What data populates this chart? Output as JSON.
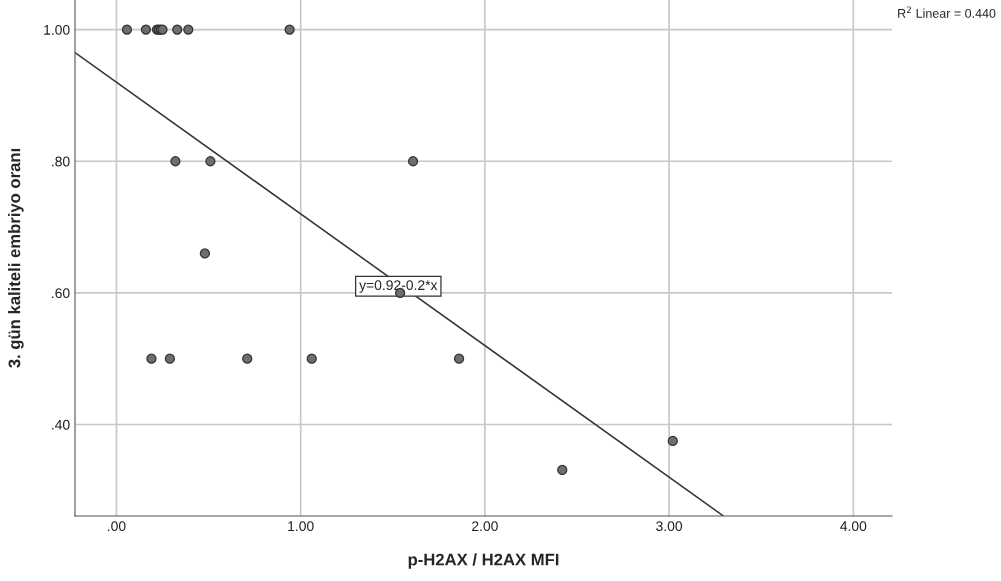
{
  "chart_data": {
    "type": "scatter",
    "xlabel": "p-H2AX / H2AX MFI",
    "ylabel": "3. gün kaliteli embriyo oranı",
    "xlim": [
      -0.225,
      4.21
    ],
    "ylim": [
      0.261,
      1.045
    ],
    "xticks": [
      {
        "value": 0,
        "label": ".00"
      },
      {
        "value": 1,
        "label": "1.00"
      },
      {
        "value": 2,
        "label": "2.00"
      },
      {
        "value": 3,
        "label": "3.00"
      },
      {
        "value": 4,
        "label": "4.00"
      }
    ],
    "yticks": [
      {
        "value": 0.4,
        "label": ".40"
      },
      {
        "value": 0.6,
        "label": ".60"
      },
      {
        "value": 0.8,
        "label": ".80"
      },
      {
        "value": 1.0,
        "label": "1.00"
      }
    ],
    "grid": true,
    "legend": false,
    "marker": "circle",
    "series": [
      {
        "color": "#6e6e6e",
        "x": [
          0.057,
          0.16,
          0.22,
          0.23,
          0.24,
          0.25,
          0.33,
          0.39,
          0.94,
          0.32,
          0.51,
          1.61,
          0.48,
          1.54,
          0.19,
          0.29,
          0.71,
          1.06,
          1.86,
          2.42,
          3.02
        ],
        "values": [
          1.0,
          1.0,
          1.0,
          1.0,
          1.0,
          1.0,
          1.0,
          1.0,
          1.0,
          0.8,
          0.8,
          0.8,
          0.66,
          0.6,
          0.5,
          0.5,
          0.5,
          0.5,
          0.5,
          0.331,
          0.375
        ]
      },
      {
        "type": "line",
        "color": "#333333",
        "marker": "none",
        "x": [
          -0.225,
          3.295
        ],
        "values": [
          0.965,
          0.261
        ]
      }
    ],
    "annotations": [
      {
        "text": "y=0.92-0.2*x",
        "x": 1.53,
        "y": 0.61
      },
      "R$^{2}$ Linear = 0.440"
    ]
  }
}
